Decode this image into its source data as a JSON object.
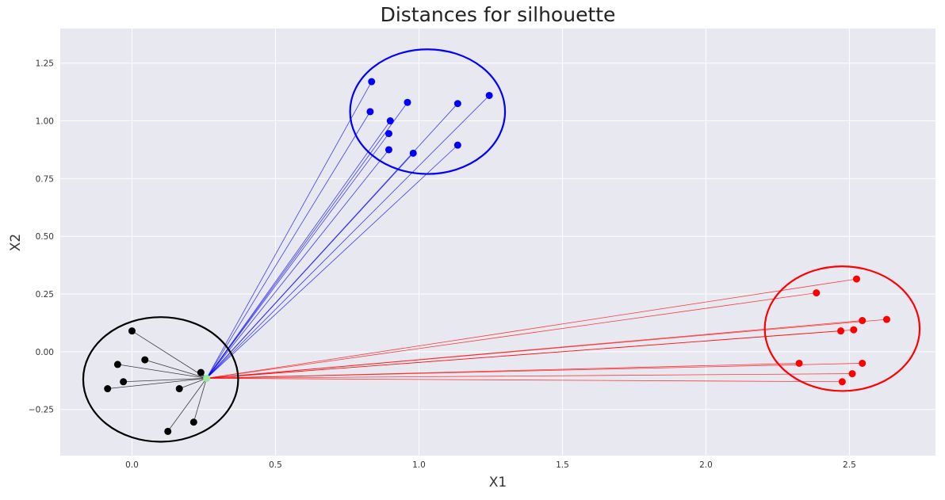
{
  "chart_data": {
    "type": "scatter",
    "title": "Distances for silhouette",
    "xlabel": "X1",
    "ylabel": "X2",
    "xlim": [
      -0.25,
      2.8
    ],
    "ylim": [
      -0.45,
      1.4
    ],
    "xticks": [
      0.0,
      0.5,
      1.0,
      1.5,
      2.0,
      2.5
    ],
    "xtick_labels": [
      "0.0",
      "0.5",
      "1.0",
      "1.5",
      "2.0",
      "2.5"
    ],
    "yticks": [
      -0.25,
      0.0,
      0.25,
      0.5,
      0.75,
      1.0,
      1.25
    ],
    "ytick_labels": [
      "−0.25",
      "0.00",
      "0.25",
      "0.50",
      "0.75",
      "1.00",
      "1.25"
    ],
    "grid": true,
    "background_color": "#e8e8f0",
    "reference_point": {
      "x": 0.26,
      "y": -0.115,
      "color": "#90ee90"
    },
    "series": [
      {
        "color": "#000000",
        "points": [
          {
            "x": 0.0,
            "y": 0.09
          },
          {
            "x": -0.05,
            "y": -0.055
          },
          {
            "x": 0.045,
            "y": -0.035
          },
          {
            "x": -0.03,
            "y": -0.13
          },
          {
            "x": -0.085,
            "y": -0.16
          },
          {
            "x": 0.24,
            "y": -0.09
          },
          {
            "x": 0.165,
            "y": -0.16
          },
          {
            "x": 0.125,
            "y": -0.345
          },
          {
            "x": 0.215,
            "y": -0.305
          }
        ],
        "ellipse": {
          "cx": 0.1,
          "cy": -0.12,
          "rx": 0.27,
          "ry": 0.27
        }
      },
      {
        "color": "#0000ff",
        "points": [
          {
            "x": 0.835,
            "y": 1.17
          },
          {
            "x": 0.83,
            "y": 1.04
          },
          {
            "x": 0.96,
            "y": 1.08
          },
          {
            "x": 0.9,
            "y": 1.0
          },
          {
            "x": 0.895,
            "y": 0.945
          },
          {
            "x": 0.895,
            "y": 0.875
          },
          {
            "x": 0.98,
            "y": 0.86
          },
          {
            "x": 1.135,
            "y": 1.075
          },
          {
            "x": 1.135,
            "y": 0.895
          },
          {
            "x": 1.245,
            "y": 1.11
          }
        ],
        "ellipse": {
          "cx": 1.03,
          "cy": 1.04,
          "rx": 0.27,
          "ry": 0.27
        }
      },
      {
        "color": "#ff0000",
        "points": [
          {
            "x": 2.525,
            "y": 0.315
          },
          {
            "x": 2.385,
            "y": 0.255
          },
          {
            "x": 2.63,
            "y": 0.14
          },
          {
            "x": 2.545,
            "y": 0.135
          },
          {
            "x": 2.515,
            "y": 0.095
          },
          {
            "x": 2.47,
            "y": 0.09
          },
          {
            "x": 2.325,
            "y": -0.05
          },
          {
            "x": 2.545,
            "y": -0.05
          },
          {
            "x": 2.51,
            "y": -0.095
          },
          {
            "x": 2.475,
            "y": -0.13
          }
        ],
        "ellipse": {
          "cx": 2.475,
          "cy": 0.1,
          "rx": 0.27,
          "ry": 0.27
        }
      }
    ]
  }
}
